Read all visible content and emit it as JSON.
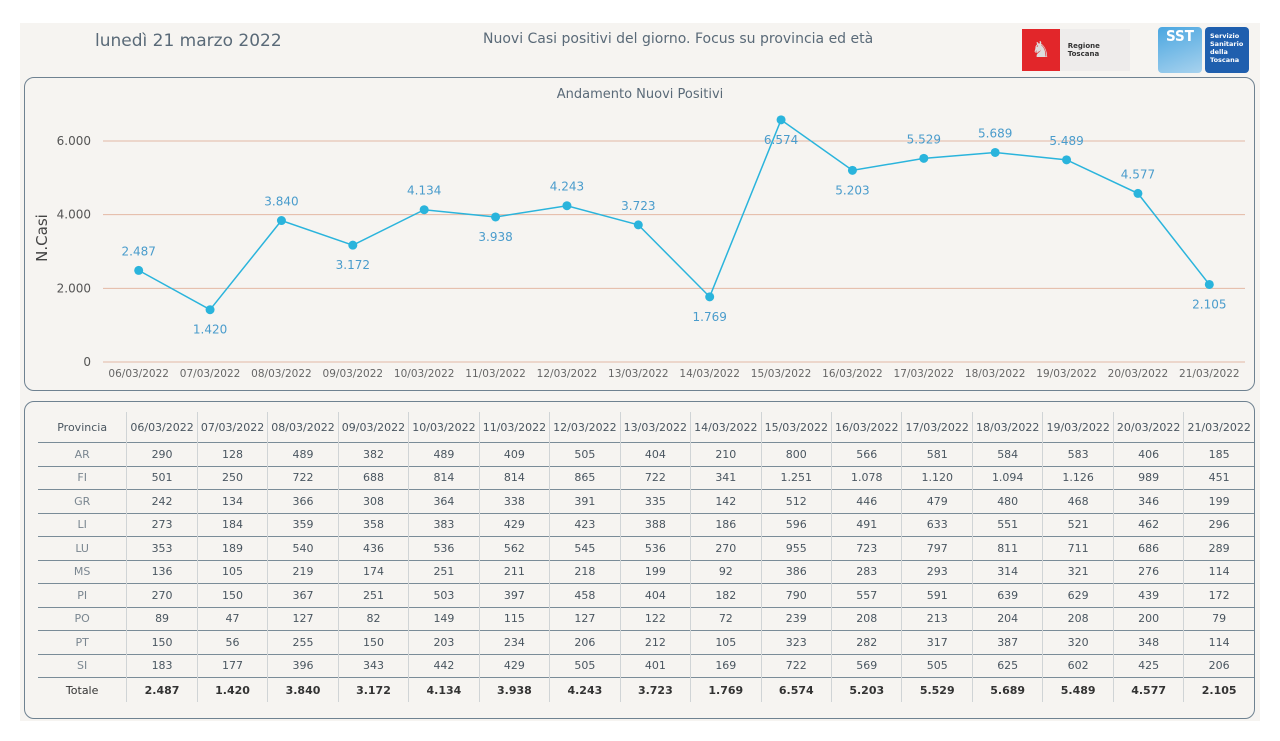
{
  "header": {
    "date": "lunedì 21 marzo 2022",
    "title": "Nuovi Casi positivi del giorno. Focus su provincia ed età",
    "logo_regione": "Regione Toscana",
    "logo_sst_short": "SST",
    "logo_sst_lines": [
      "Servizio",
      "Sanitario",
      "della",
      "Toscana"
    ]
  },
  "colors": {
    "line": "#2ab4dc",
    "label": "#4a9ccc",
    "grid": "#e3b9a5",
    "border": "#6f8291",
    "background": "#f6f4f1"
  },
  "chart_data": {
    "type": "line",
    "title": "Andamento Nuovi Positivi",
    "xlabel": "",
    "ylabel": "N.Casi",
    "ylim": [
      0,
      6000
    ],
    "yticks": [
      0,
      2000,
      4000,
      6000
    ],
    "ytick_labels": [
      "0",
      "2.000",
      "4.000",
      "6.000"
    ],
    "grid": true,
    "categories": [
      "06/03/2022",
      "07/03/2022",
      "08/03/2022",
      "09/03/2022",
      "10/03/2022",
      "11/03/2022",
      "12/03/2022",
      "13/03/2022",
      "14/03/2022",
      "15/03/2022",
      "16/03/2022",
      "17/03/2022",
      "18/03/2022",
      "19/03/2022",
      "20/03/2022",
      "21/03/2022"
    ],
    "series": [
      {
        "name": "Nuovi Positivi",
        "values": [
          2487,
          1420,
          3840,
          3172,
          4134,
          3938,
          4243,
          3723,
          1769,
          6574,
          5203,
          5529,
          5689,
          5489,
          4577,
          2105
        ],
        "labels": [
          "2.487",
          "1.420",
          "3.840",
          "3.172",
          "4.134",
          "3.938",
          "4.243",
          "3.723",
          "1.769",
          "6.574",
          "5.203",
          "5.529",
          "5.689",
          "5.489",
          "4.577",
          "2.105"
        ],
        "label_pos": [
          "above",
          "below",
          "above",
          "below",
          "above",
          "below",
          "above",
          "above",
          "below",
          "below",
          "below",
          "above",
          "above",
          "above",
          "above",
          "below"
        ]
      }
    ]
  },
  "table": {
    "header": [
      "Provincia",
      "06/03/2022",
      "07/03/2022",
      "08/03/2022",
      "09/03/2022",
      "10/03/2022",
      "11/03/2022",
      "12/03/2022",
      "13/03/2022",
      "14/03/2022",
      "15/03/2022",
      "16/03/2022",
      "17/03/2022",
      "18/03/2022",
      "19/03/2022",
      "20/03/2022",
      "21/03/2022"
    ],
    "rows": [
      [
        "AR",
        "290",
        "128",
        "489",
        "382",
        "489",
        "409",
        "505",
        "404",
        "210",
        "800",
        "566",
        "581",
        "584",
        "583",
        "406",
        "185"
      ],
      [
        "FI",
        "501",
        "250",
        "722",
        "688",
        "814",
        "814",
        "865",
        "722",
        "341",
        "1.251",
        "1.078",
        "1.120",
        "1.094",
        "1.126",
        "989",
        "451"
      ],
      [
        "GR",
        "242",
        "134",
        "366",
        "308",
        "364",
        "338",
        "391",
        "335",
        "142",
        "512",
        "446",
        "479",
        "480",
        "468",
        "346",
        "199"
      ],
      [
        "LI",
        "273",
        "184",
        "359",
        "358",
        "383",
        "429",
        "423",
        "388",
        "186",
        "596",
        "491",
        "633",
        "551",
        "521",
        "462",
        "296"
      ],
      [
        "LU",
        "353",
        "189",
        "540",
        "436",
        "536",
        "562",
        "545",
        "536",
        "270",
        "955",
        "723",
        "797",
        "811",
        "711",
        "686",
        "289"
      ],
      [
        "MS",
        "136",
        "105",
        "219",
        "174",
        "251",
        "211",
        "218",
        "199",
        "92",
        "386",
        "283",
        "293",
        "314",
        "321",
        "276",
        "114"
      ],
      [
        "PI",
        "270",
        "150",
        "367",
        "251",
        "503",
        "397",
        "458",
        "404",
        "182",
        "790",
        "557",
        "591",
        "639",
        "629",
        "439",
        "172"
      ],
      [
        "PO",
        "89",
        "47",
        "127",
        "82",
        "149",
        "115",
        "127",
        "122",
        "72",
        "239",
        "208",
        "213",
        "204",
        "208",
        "200",
        "79"
      ],
      [
        "PT",
        "150",
        "56",
        "255",
        "150",
        "203",
        "234",
        "206",
        "212",
        "105",
        "323",
        "282",
        "317",
        "387",
        "320",
        "348",
        "114"
      ],
      [
        "SI",
        "183",
        "177",
        "396",
        "343",
        "442",
        "429",
        "505",
        "401",
        "169",
        "722",
        "569",
        "505",
        "625",
        "602",
        "425",
        "206"
      ]
    ],
    "total": [
      "Totale",
      "2.487",
      "1.420",
      "3.840",
      "3.172",
      "4.134",
      "3.938",
      "4.243",
      "3.723",
      "1.769",
      "6.574",
      "5.203",
      "5.529",
      "5.689",
      "5.489",
      "4.577",
      "2.105"
    ]
  }
}
